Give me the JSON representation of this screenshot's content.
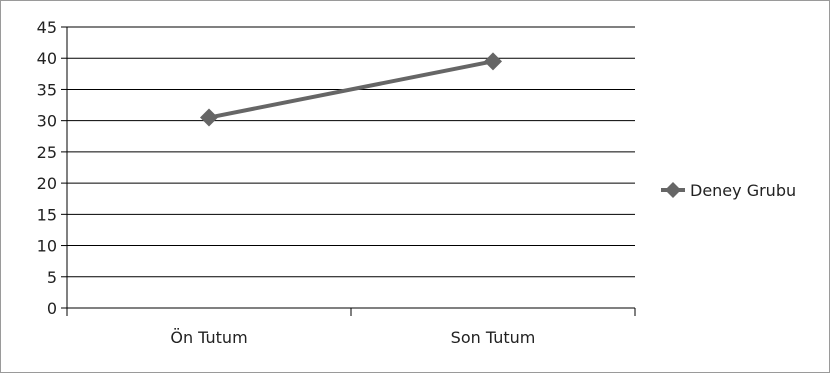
{
  "chart_data": {
    "type": "line",
    "title": "",
    "xlabel": "",
    "ylabel": "",
    "categories": [
      "Ön Tutum",
      "Son Tutum"
    ],
    "ylim": [
      0,
      45
    ],
    "yticks": [
      0,
      5,
      10,
      15,
      20,
      25,
      30,
      35,
      40,
      45
    ],
    "ytick_labels": [
      "0",
      "5",
      "10",
      "15",
      "20",
      "25",
      "30",
      "35",
      "40",
      "45"
    ],
    "grid": true,
    "legend_position": "right",
    "series": [
      {
        "name": "Deney Grubu",
        "values": [
          30.5,
          39.5
        ],
        "marker": "diamond",
        "color": "#666666"
      }
    ]
  }
}
